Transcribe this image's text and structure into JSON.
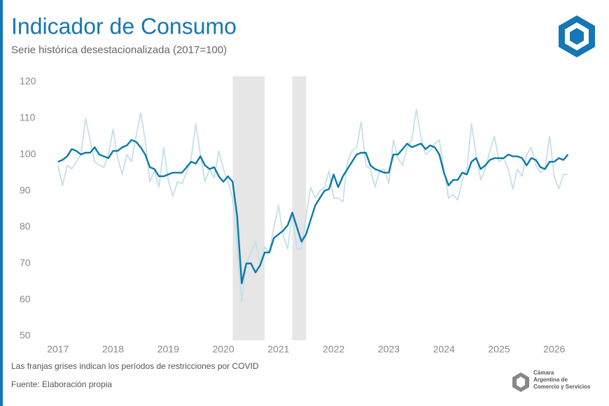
{
  "chart_data": {
    "type": "line",
    "title": "Indicador de Consumo",
    "subtitle": "Serie histórica desestacionalizada (2017=100)",
    "note": "Las franjas grises indican los períodos de restricciones por COVID",
    "source": "Fuente: Elaboración propia",
    "logo_text": [
      "Cámara",
      "Argentina de",
      "Comercio y Servicios"
    ],
    "x": [
      2017,
      2017.083,
      2017.167,
      2017.25,
      2017.333,
      2017.417,
      2017.5,
      2017.583,
      2017.667,
      2017.75,
      2017.833,
      2017.917,
      2018,
      2018.083,
      2018.167,
      2018.25,
      2018.333,
      2018.417,
      2018.5,
      2018.583,
      2018.667,
      2018.75,
      2018.833,
      2018.917,
      2019,
      2019.083,
      2019.167,
      2019.25,
      2019.333,
      2019.417,
      2019.5,
      2019.583,
      2019.667,
      2019.75,
      2019.833,
      2019.917,
      2020,
      2020.083,
      2020.167,
      2020.25,
      2020.333,
      2020.417,
      2020.5,
      2020.583,
      2020.667,
      2020.75,
      2020.833,
      2020.917,
      2021,
      2021.083,
      2021.167,
      2021.25,
      2021.333,
      2021.417,
      2021.5,
      2021.583,
      2021.667,
      2021.75,
      2021.833,
      2021.917,
      2022,
      2022.083,
      2022.167,
      2022.25,
      2022.333,
      2022.417,
      2022.5,
      2022.583,
      2022.667,
      2022.75,
      2022.833,
      2022.917,
      2023,
      2023.083,
      2023.167,
      2023.25,
      2023.333,
      2023.417,
      2023.5,
      2023.583,
      2023.667,
      2023.75,
      2023.833,
      2023.917,
      2024,
      2024.083,
      2024.167,
      2024.25,
      2024.333,
      2024.417,
      2024.5,
      2024.583,
      2024.667,
      2024.75,
      2024.833,
      2024.917,
      2025,
      2025.083,
      2025.167,
      2025.25,
      2025.333,
      2025.417,
      2025.5,
      2025.583,
      2025.667,
      2025.75,
      2025.833,
      2025.917,
      2026,
      2026.083,
      2026.167,
      2026.25
    ],
    "series": [
      {
        "color": "#c5dfea",
        "values": [
          97,
          91.5,
          97,
          96,
          98,
          100,
          110,
          104,
          98,
          97,
          96.5,
          100,
          107,
          99,
          94.5,
          100,
          98,
          105,
          111.5,
          104,
          92.5,
          95.5,
          91,
          102,
          93,
          88.5,
          92.5,
          92,
          95,
          99,
          108.5,
          100,
          92.5,
          96,
          93.5,
          101,
          96,
          92.5,
          88,
          75,
          59.5,
          70,
          73,
          76,
          70,
          74.5,
          73,
          80,
          86,
          78,
          74,
          84,
          74,
          74,
          83,
          91,
          88,
          90,
          91,
          95.5,
          88,
          88,
          87,
          98,
          101,
          102,
          109,
          97,
          96,
          91,
          95.5,
          96,
          92,
          104,
          99,
          97,
          102,
          104,
          112.5,
          105,
          100,
          101,
          103,
          104,
          96,
          88,
          89,
          87.5,
          93,
          96,
          108.5,
          100,
          93,
          96,
          101,
          105,
          98,
          99,
          96,
          90.5,
          96,
          94,
          100,
          102,
          97,
          95,
          96,
          105,
          94,
          90.5,
          94.5,
          94.5
        ]
      },
      {
        "color": "#0a7aa8",
        "values": [
          98,
          98.5,
          99.5,
          101.5,
          101,
          100,
          100.5,
          100.5,
          102,
          100,
          99.5,
          99,
          101,
          101,
          102,
          102.5,
          104,
          103.5,
          102,
          100,
          96.5,
          96,
          94,
          94,
          94.5,
          95,
          95,
          95,
          96.5,
          98,
          97.5,
          99.5,
          97,
          96,
          96.5,
          94,
          92.5,
          94,
          92.5,
          83,
          64.5,
          70,
          70,
          67.5,
          69.5,
          73,
          73,
          77,
          78,
          79,
          80.5,
          84,
          80,
          76,
          78,
          82,
          86,
          88,
          90,
          90.5,
          94.5,
          91,
          94,
          96,
          98,
          100,
          100.5,
          100.5,
          97,
          96,
          95.5,
          95,
          95,
          100,
          100,
          101.5,
          103,
          102,
          102.5,
          103,
          101.5,
          102.5,
          102,
          100,
          95,
          91.5,
          93,
          93,
          95,
          94.5,
          98,
          99,
          96,
          97,
          98.5,
          99,
          99,
          99,
          100,
          99.5,
          99.5,
          99,
          97,
          99,
          98.5,
          96.5,
          96,
          98,
          98,
          99,
          98.5,
          100
        ]
      }
    ],
    "bands": [
      [
        2020.17,
        2020.75
      ],
      [
        2021.25,
        2021.5
      ]
    ],
    "band_color": "#e6e6e6",
    "xlim": [
      2016.8,
      2026.6
    ],
    "xticks": [
      2017,
      2018,
      2019,
      2020,
      2021,
      2022,
      2023,
      2024,
      2025,
      2026
    ],
    "ylim": [
      50,
      120
    ],
    "yticks": [
      50,
      60,
      70,
      80,
      90,
      100,
      110,
      120
    ],
    "grid": false
  }
}
